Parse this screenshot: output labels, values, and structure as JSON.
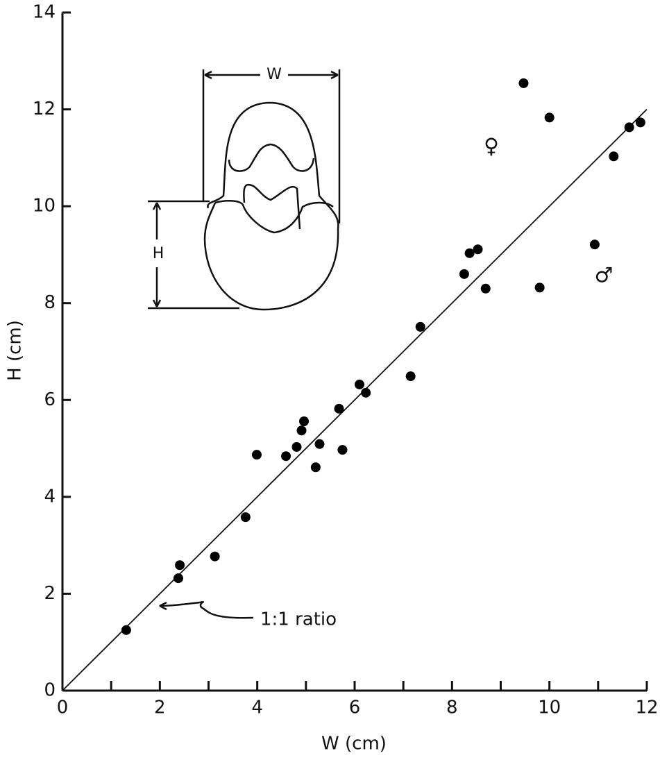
{
  "chart_data": {
    "type": "scatter",
    "xlabel": "W (cm)",
    "ylabel": "H (cm)",
    "x": [
      1.31,
      2.41,
      2.38,
      3.13,
      3.76,
      3.99,
      4.59,
      4.81,
      4.91,
      4.96,
      5.2,
      5.28,
      5.75,
      5.68,
      6.1,
      6.23,
      7.15,
      7.35,
      8.25,
      8.36,
      8.53,
      8.69,
      9.47,
      9.8,
      10.0,
      10.93,
      11.32,
      11.64,
      11.87
    ],
    "values": [
      1.25,
      2.59,
      2.32,
      2.77,
      3.58,
      4.87,
      4.84,
      5.03,
      5.37,
      5.56,
      4.61,
      5.09,
      4.97,
      5.82,
      6.32,
      6.15,
      6.49,
      7.51,
      8.6,
      9.03,
      9.11,
      8.3,
      12.54,
      8.32,
      11.83,
      9.21,
      11.03,
      11.63,
      11.73
    ],
    "color": "#000000",
    "xlim": [
      0,
      12
    ],
    "ylim": [
      0,
      14
    ],
    "xticks": [
      0,
      2,
      4,
      6,
      8,
      10,
      12
    ],
    "xminorticks": [
      1,
      3,
      5,
      7,
      9,
      11
    ],
    "yticks": [
      0,
      2,
      4,
      6,
      8,
      10,
      12,
      14
    ],
    "reference_line": {
      "x": [
        0,
        12
      ],
      "y": [
        0,
        12
      ],
      "label": "1:1 ratio"
    },
    "annotations": {
      "female": "♀",
      "male": "♂"
    },
    "inset": {
      "width_label": "W",
      "height_label": "H"
    }
  }
}
